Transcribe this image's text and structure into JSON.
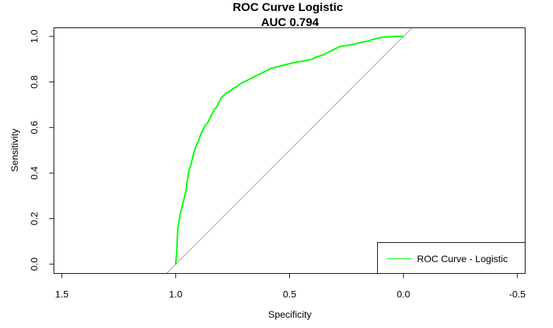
{
  "chart_data": {
    "type": "line",
    "title": "ROC Curve Logistic",
    "subtitle": "AUC  0.794",
    "xlabel": "Specificity",
    "ylabel": "Sensitivity",
    "xlim": [
      1.5,
      -0.5
    ],
    "ylim": [
      0,
      1
    ],
    "x_reversed": true,
    "x_ticks": [
      1.5,
      1.0,
      0.5,
      0.0,
      -0.5
    ],
    "x_tick_labels": [
      "1.5",
      "1.0",
      "0.5",
      "0.0",
      "-0.5"
    ],
    "y_ticks": [
      0.0,
      0.2,
      0.4,
      0.6,
      0.8,
      1.0
    ],
    "y_tick_labels": [
      "0.0",
      "0.2",
      "0.4",
      "0.6",
      "0.8",
      "1.0"
    ],
    "grid": false,
    "legend_position": "bottom-right",
    "reference_line": {
      "description": "diagonal y = 1 - x",
      "color": "#A0A0A0"
    },
    "series": [
      {
        "name": "ROC Curve - Logistic",
        "color": "#00FF00",
        "x": [
          1.0,
          0.995,
          0.993,
          0.99,
          0.985,
          0.98,
          0.975,
          0.97,
          0.965,
          0.96,
          0.955,
          0.95,
          0.945,
          0.94,
          0.935,
          0.93,
          0.925,
          0.92,
          0.91,
          0.9,
          0.89,
          0.88,
          0.87,
          0.86,
          0.85,
          0.84,
          0.83,
          0.82,
          0.81,
          0.8,
          0.79,
          0.78,
          0.77,
          0.76,
          0.75,
          0.74,
          0.73,
          0.72,
          0.7,
          0.68,
          0.66,
          0.64,
          0.62,
          0.6,
          0.58,
          0.56,
          0.54,
          0.52,
          0.5,
          0.48,
          0.45,
          0.42,
          0.4,
          0.38,
          0.35,
          0.32,
          0.3,
          0.28,
          0.25,
          0.22,
          0.2,
          0.18,
          0.15,
          0.14,
          0.12,
          0.1,
          0.08,
          0.06,
          0.04,
          0.02,
          0.0
        ],
        "y": [
          0.0,
          0.06,
          0.11,
          0.16,
          0.19,
          0.22,
          0.24,
          0.26,
          0.28,
          0.3,
          0.32,
          0.36,
          0.39,
          0.42,
          0.43,
          0.45,
          0.47,
          0.49,
          0.52,
          0.54,
          0.57,
          0.59,
          0.61,
          0.62,
          0.64,
          0.66,
          0.68,
          0.69,
          0.71,
          0.73,
          0.74,
          0.75,
          0.755,
          0.76,
          0.77,
          0.775,
          0.78,
          0.79,
          0.8,
          0.81,
          0.82,
          0.83,
          0.84,
          0.85,
          0.86,
          0.865,
          0.87,
          0.875,
          0.88,
          0.885,
          0.89,
          0.895,
          0.9,
          0.91,
          0.92,
          0.935,
          0.945,
          0.955,
          0.96,
          0.965,
          0.97,
          0.975,
          0.98,
          0.985,
          0.99,
          0.995,
          0.997,
          0.998,
          1.0,
          1.0,
          1.0
        ]
      }
    ]
  }
}
